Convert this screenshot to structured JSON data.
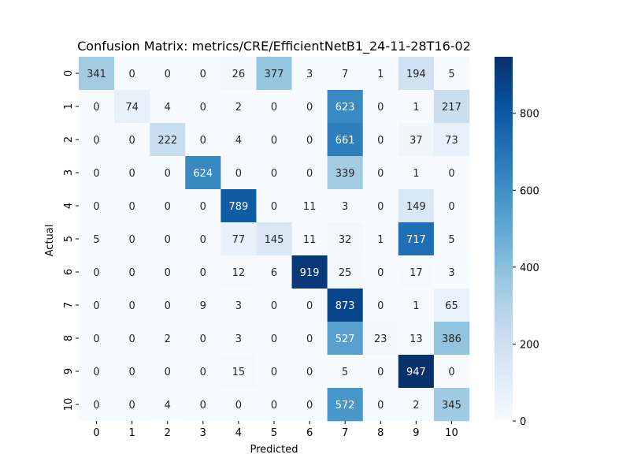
{
  "chart_data": {
    "type": "heatmap",
    "title": "Confusion Matrix: metrics/CRE/EfficientNetB1_24-11-28T16-02",
    "xlabel": "Predicted",
    "ylabel": "Actual",
    "row_labels": [
      "0",
      "1",
      "2",
      "3",
      "4",
      "5",
      "6",
      "7",
      "8",
      "9",
      "10"
    ],
    "col_labels": [
      "0",
      "1",
      "2",
      "3",
      "4",
      "5",
      "6",
      "7",
      "8",
      "9",
      "10"
    ],
    "matrix": [
      [
        341,
        0,
        0,
        0,
        26,
        377,
        3,
        7,
        1,
        194,
        5
      ],
      [
        0,
        74,
        4,
        0,
        2,
        0,
        0,
        623,
        0,
        1,
        217
      ],
      [
        0,
        0,
        222,
        0,
        4,
        0,
        0,
        661,
        0,
        37,
        73
      ],
      [
        0,
        0,
        0,
        624,
        0,
        0,
        0,
        339,
        0,
        1,
        0
      ],
      [
        0,
        0,
        0,
        0,
        789,
        0,
        11,
        3,
        0,
        149,
        0
      ],
      [
        5,
        0,
        0,
        0,
        77,
        145,
        11,
        32,
        1,
        717,
        5
      ],
      [
        0,
        0,
        0,
        0,
        12,
        6,
        919,
        25,
        0,
        17,
        3
      ],
      [
        0,
        0,
        0,
        9,
        3,
        0,
        0,
        873,
        0,
        1,
        65
      ],
      [
        0,
        0,
        2,
        0,
        3,
        0,
        0,
        527,
        23,
        13,
        386
      ],
      [
        0,
        0,
        0,
        0,
        15,
        0,
        0,
        5,
        0,
        947,
        0
      ],
      [
        0,
        0,
        4,
        0,
        0,
        0,
        0,
        572,
        0,
        2,
        345
      ]
    ],
    "colormap": "Blues",
    "value_range": [
      0,
      947
    ],
    "colorbar_ticks": [
      "0",
      "200",
      "400",
      "600",
      "800"
    ],
    "colorbar_tick_values": [
      0,
      200,
      400,
      600,
      800
    ],
    "grid": false,
    "annotated": true
  }
}
